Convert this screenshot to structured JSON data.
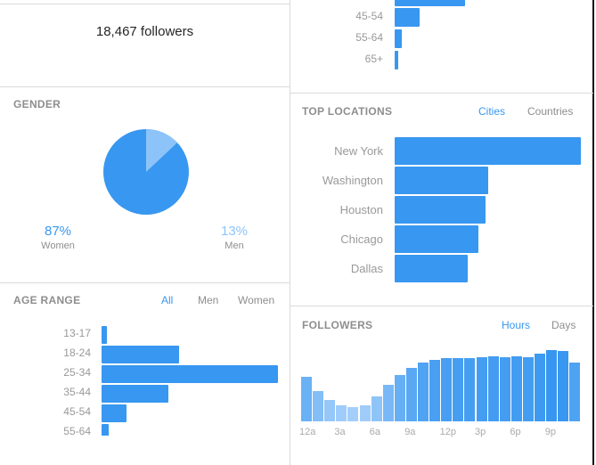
{
  "followers_count": "18,467 followers",
  "gender": {
    "title": "GENDER",
    "women_pct": "87%",
    "women_label": "Women",
    "men_pct": "13%",
    "men_label": "Men",
    "women_value": 87,
    "men_value": 13,
    "women_color": "#3897f0",
    "men_color": "#8cc4fa"
  },
  "age_range": {
    "title": "AGE RANGE",
    "tabs": [
      "All",
      "Men",
      "Women"
    ],
    "active_tab": "All",
    "items": [
      {
        "label": "13-17",
        "value": 3
      },
      {
        "label": "18-24",
        "value": 44
      },
      {
        "label": "25-34",
        "value": 100
      },
      {
        "label": "35-44",
        "value": 38
      },
      {
        "label": "45-54",
        "value": 14
      },
      {
        "label": "55-64",
        "value": 4
      }
    ]
  },
  "age_range_top": {
    "items": [
      {
        "label": "45-54",
        "value": 14
      },
      {
        "label": "55-64",
        "value": 4
      },
      {
        "label": "65+",
        "value": 2
      }
    ],
    "cut_bar_value": 38
  },
  "top_locations": {
    "title": "TOP LOCATIONS",
    "tabs": [
      "Cities",
      "Countries"
    ],
    "active_tab": "Cities",
    "items": [
      {
        "label": "New York",
        "value": 100
      },
      {
        "label": "Washington",
        "value": 50
      },
      {
        "label": "Houston",
        "value": 49
      },
      {
        "label": "Chicago",
        "value": 45
      },
      {
        "label": "Dallas",
        "value": 39
      }
    ]
  },
  "followers": {
    "title": "FOLLOWERS",
    "tabs": [
      "Hours",
      "Days"
    ],
    "active_tab": "Hours",
    "ticks": [
      "12a",
      "3a",
      "6a",
      "9a",
      "12p",
      "3p",
      "6p",
      "9p"
    ],
    "values": [
      148,
      102,
      73,
      55,
      47,
      53,
      83,
      122,
      155,
      178,
      196,
      207,
      211,
      213,
      213,
      216,
      217,
      215,
      219,
      216,
      226,
      239,
      237,
      198
    ]
  },
  "accent": "#3897f0"
}
